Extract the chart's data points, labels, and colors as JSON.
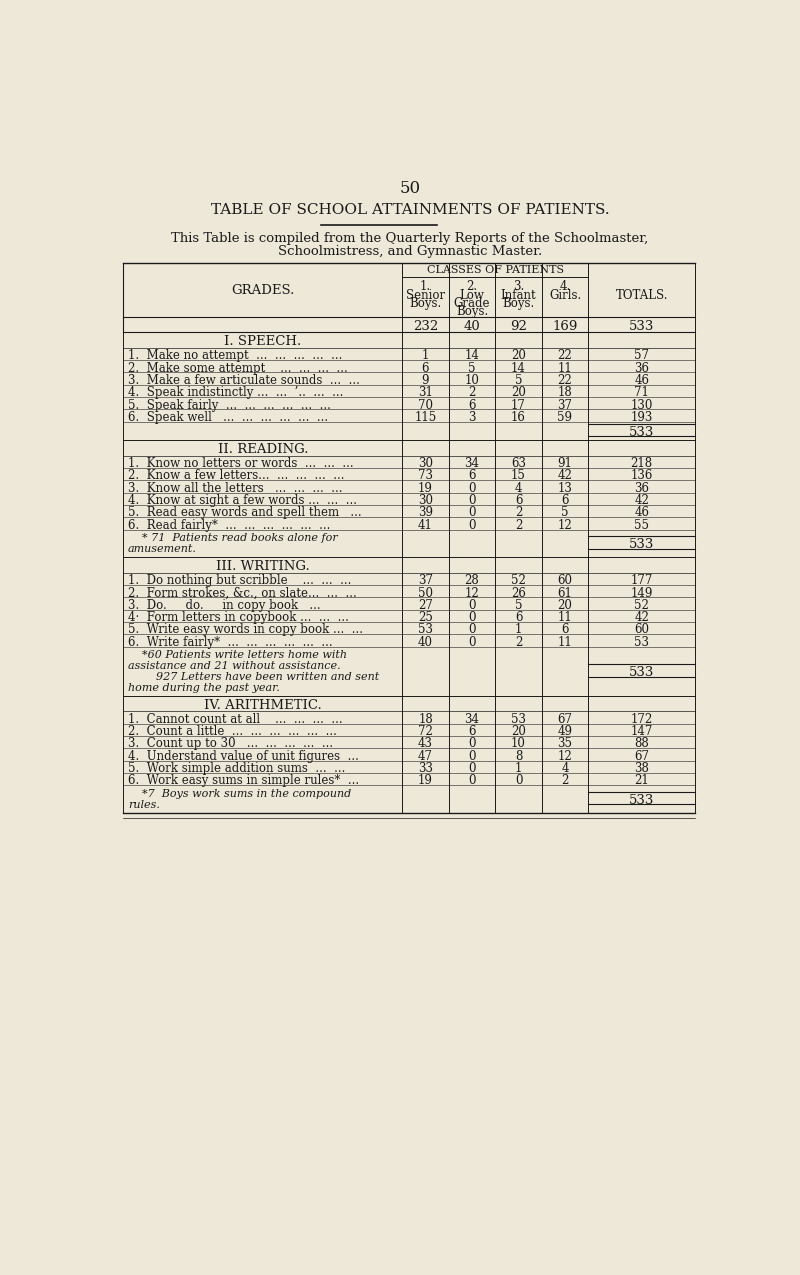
{
  "bg_color": "#ede8d8",
  "text_color": "#1a1a1a",
  "page_number": "50",
  "title": "TABLE OF SCHOOL ATTAINMENTS OF PATIENTS.",
  "subtitle1": "This Table is compiled from the Quarterly Reports of the Schoolmaster,",
  "subtitle2": "Schoolmistress, and Gymnastic Master.",
  "col_header_main": "CLASSES OF PATIENTS",
  "col_headers_line1": [
    "1.",
    "2.",
    "3.",
    "4.",
    ""
  ],
  "col_headers_line2": [
    "Senior",
    "Low",
    "Infant",
    "Girls.",
    "TOTALS."
  ],
  "col_headers_line3": [
    "Boys.",
    "Grade",
    "Boys.",
    "",
    ""
  ],
  "col_headers_line4": [
    "",
    "Boys.",
    "",
    "",
    ""
  ],
  "col_totals_row": [
    "232",
    "40",
    "92",
    "169",
    "533"
  ],
  "grades_label": "GRADES.",
  "sections": [
    {
      "title": "I. SPEECH.",
      "rows": [
        {
          "label": "1.  Make no attempt  ...  ...  ...  ...  ...",
          "vals": [
            "1",
            "14",
            "20",
            "22",
            "57"
          ]
        },
        {
          "label": "2.  Make some attempt    ...  ...  ...  ...",
          "vals": [
            "6",
            "5",
            "14",
            "11",
            "36"
          ]
        },
        {
          "label": "3.  Make a few articulate sounds  ...  ...",
          "vals": [
            "9",
            "10",
            "5",
            "22",
            "46"
          ]
        },
        {
          "label": "4.  Speak indistinctly ...  ...  ’..  ...  ...",
          "vals": [
            "31",
            "2",
            "20",
            "18",
            "71"
          ]
        },
        {
          "label": "5.  Speak fairly  ...  ...  ...  ...  ...  ...",
          "vals": [
            "70",
            "6",
            "17",
            "37",
            "130"
          ]
        },
        {
          "label": "6.  Speak well   ...  ...  ...  ...  ...  ...",
          "vals": [
            "115",
            "3",
            "16",
            "59",
            "193"
          ]
        }
      ],
      "section_total": "533",
      "footnote": null,
      "footnote_italic": false
    },
    {
      "title": "II. READING.",
      "rows": [
        {
          "label": "1.  Know no letters or words  ...  ...  ...",
          "vals": [
            "30",
            "34",
            "63",
            "91",
            "218"
          ]
        },
        {
          "label": "2.  Know a few letters...  ...  ...  ...  ...",
          "vals": [
            "73",
            "6",
            "15",
            "42",
            "136"
          ]
        },
        {
          "label": "3.  Know all the letters   ...  ...  ...  ...",
          "vals": [
            "19",
            "0",
            "4",
            "13",
            "36"
          ]
        },
        {
          "label": "4.  Know at sight a few words ...  ...  ...",
          "vals": [
            "30",
            "0",
            "6",
            "6",
            "42"
          ]
        },
        {
          "label": "5.  Read easy words and spell them   ...",
          "vals": [
            "39",
            "0",
            "2",
            "5",
            "46"
          ]
        },
        {
          "label": "6.  Read fairly*  ...  ...  ...  ...  ...  ...",
          "vals": [
            "41",
            "0",
            "2",
            "12",
            "55"
          ]
        }
      ],
      "section_total": "533",
      "footnote": "    * 71  Patients read books alone for\namusement.",
      "footnote_italic": true
    },
    {
      "title": "III. WRITING.",
      "rows": [
        {
          "label": "1.  Do nothing but scribble    ...  ...  ...",
          "vals": [
            "37",
            "28",
            "52",
            "60",
            "177"
          ]
        },
        {
          "label": "2.  Form strokes, &c., on slate...  ...  ...",
          "vals": [
            "50",
            "12",
            "26",
            "61",
            "149"
          ]
        },
        {
          "label": "3.  Do.     do.     in copy book   ...",
          "vals": [
            "27",
            "0",
            "5",
            "20",
            "52"
          ]
        },
        {
          "label": "4·  Form letters in copybook ...  ...  ...",
          "vals": [
            "25",
            "0",
            "6",
            "11",
            "42"
          ]
        },
        {
          "label": "5.  Write easy words in copy book ...  ...",
          "vals": [
            "53",
            "0",
            "1",
            "6",
            "60"
          ]
        },
        {
          "label": "6.  Write fairly*  ...  ...  ...  ...  ...  ...",
          "vals": [
            "40",
            "0",
            "2",
            "11",
            "53"
          ]
        }
      ],
      "section_total": "533",
      "footnote": "    *60 Patients write letters home with\nassistance and 21 without assistance.\n        927 Letters have been written and sent\nhome during the past year.",
      "footnote_italic": true
    },
    {
      "title": "IV. ARITHMETIC.",
      "rows": [
        {
          "label": "1.  Cannot count at all    ...  ...  ...  ...",
          "vals": [
            "18",
            "34",
            "53",
            "67",
            "172"
          ]
        },
        {
          "label": "2.  Count a little  ...  ...  ...  ...  ...  ...",
          "vals": [
            "72",
            "6",
            "20",
            "49",
            "147"
          ]
        },
        {
          "label": "3.  Count up to 30   ...  ...  ...  ...  ...",
          "vals": [
            "43",
            "0",
            "10",
            "35",
            "88"
          ]
        },
        {
          "label": "4.  Understand value of unit figures  ...",
          "vals": [
            "47",
            "0",
            "8",
            "12",
            "67"
          ]
        },
        {
          "label": "5.  Work simple addition sums  ...  ...",
          "vals": [
            "33",
            "0",
            "1",
            "4",
            "38"
          ]
        },
        {
          "label": "6.  Work easy sums in simple rules*  ...",
          "vals": [
            "19",
            "0",
            "0",
            "2",
            "21"
          ]
        }
      ],
      "section_total": "533",
      "footnote": "    *7  Boys work sums in the compound\nrules.",
      "footnote_italic": true
    }
  ]
}
